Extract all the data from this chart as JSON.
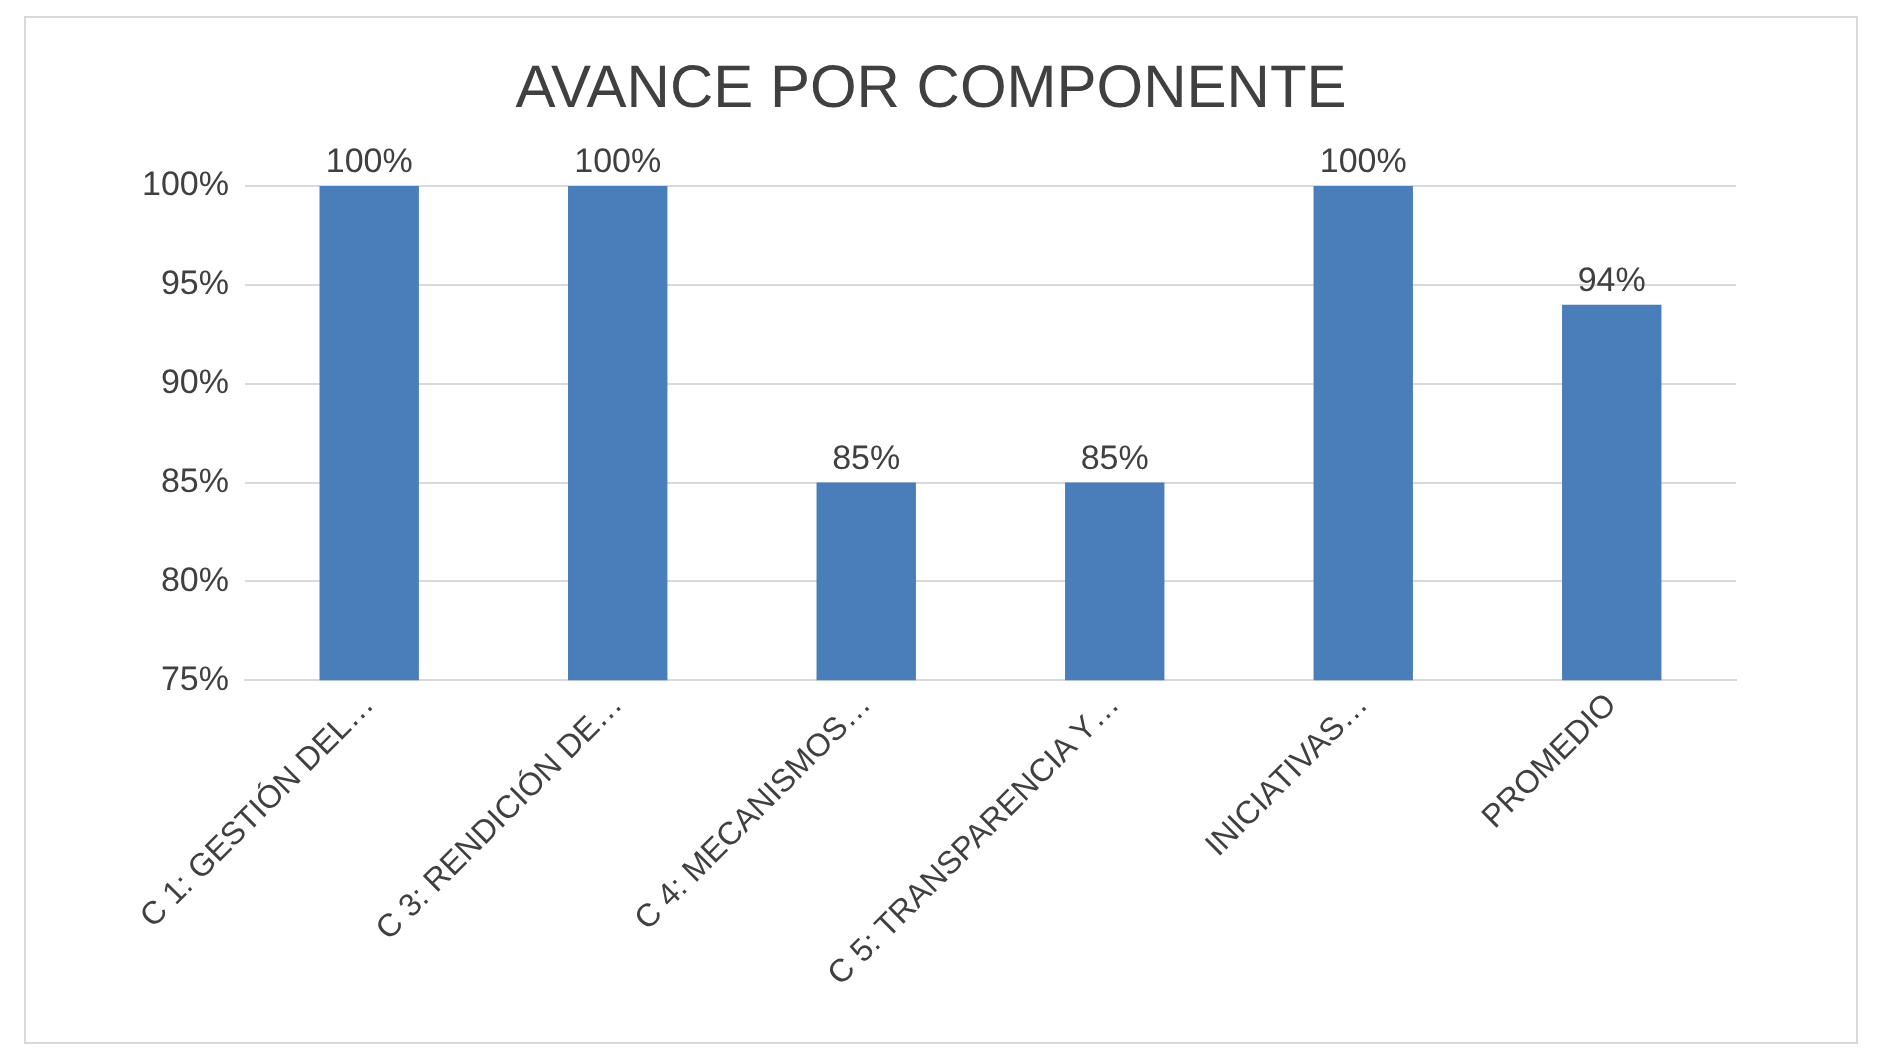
{
  "chart_data": {
    "type": "bar",
    "title": "AVANCE POR COMPONENTE",
    "categories": [
      "C 1: GESTIÓN DEL…",
      "C 3: RENDICIÓN DE…",
      "C 4: MECANISMOS…",
      "C 5: TRANSPARENCIA Y…",
      "INICIATIVAS…",
      "PROMEDIO"
    ],
    "values": [
      100,
      100,
      85,
      85,
      100,
      94
    ],
    "value_labels": [
      "100%",
      "100%",
      "85%",
      "85%",
      "100%",
      "94%"
    ],
    "color": "#4a7ebb",
    "ylim": [
      75,
      100
    ],
    "yticks": [
      {
        "value": 75,
        "label": "75%"
      },
      {
        "value": 80,
        "label": "80%"
      },
      {
        "value": 85,
        "label": "85%"
      },
      {
        "value": 90,
        "label": "90%"
      },
      {
        "value": 95,
        "label": "95%"
      },
      {
        "value": 100,
        "label": "100%"
      }
    ],
    "grid": "y",
    "legend": false
  }
}
